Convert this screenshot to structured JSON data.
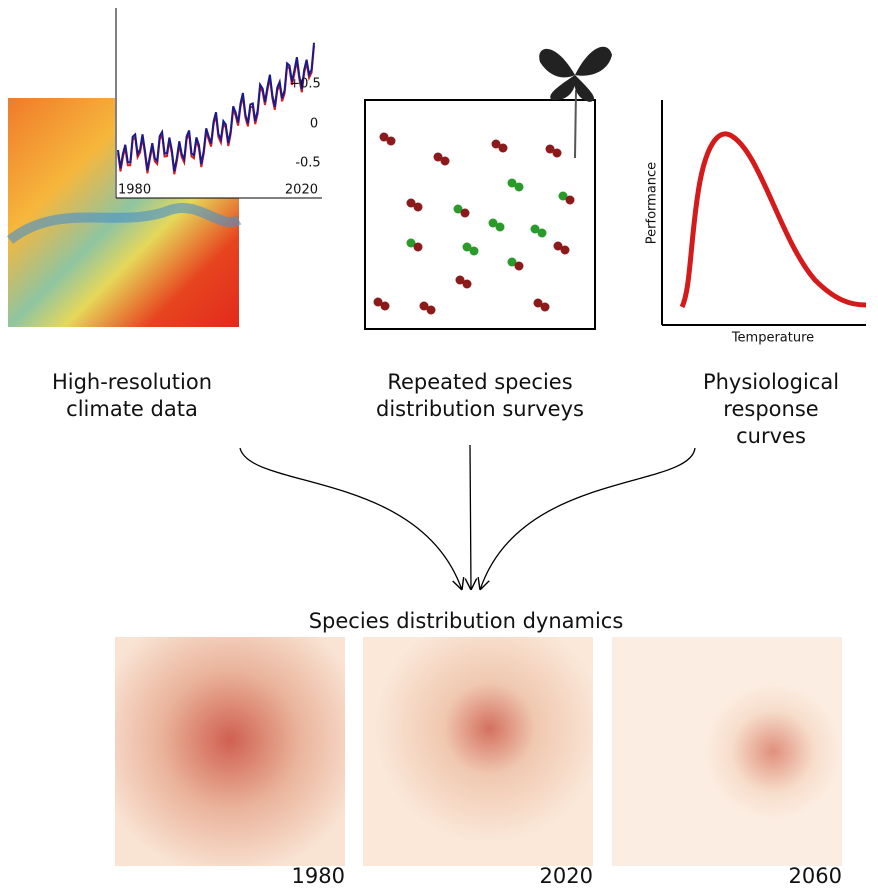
{
  "climate": {
    "yticks": [
      "+0.5",
      "0",
      "-0.5"
    ],
    "xticks": [
      "1980",
      "2020"
    ],
    "label": [
      "High-resolution",
      "climate data"
    ]
  },
  "surveys": {
    "label": [
      "Repeated species",
      "distribution surveys"
    ]
  },
  "response": {
    "y_label": "Performance",
    "x_label": "Temperature",
    "label": [
      "Physiological",
      "response",
      "curves"
    ]
  },
  "output": {
    "title": "Species distribution dynamics",
    "maps": [
      "1980",
      "2020",
      "2060"
    ]
  }
}
